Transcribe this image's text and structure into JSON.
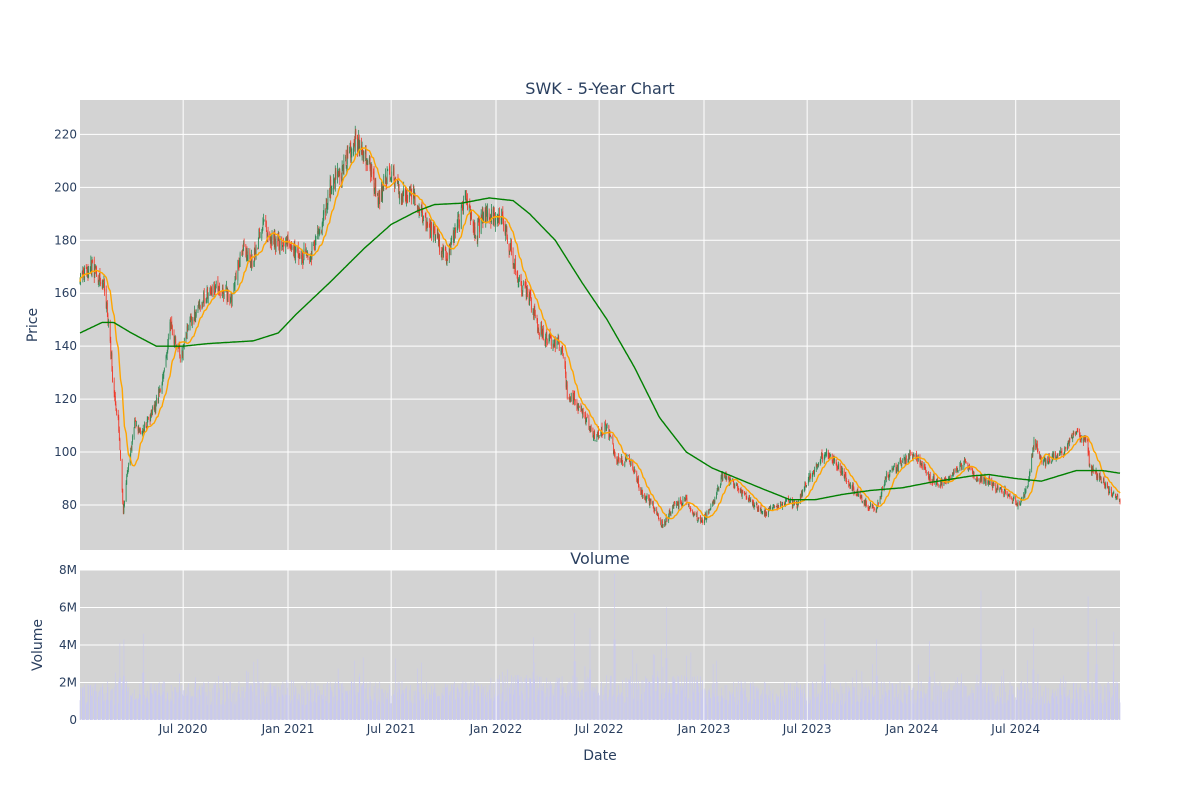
{
  "chart_data": [
    {
      "type": "candlestick",
      "title": "SWK - 5-Year Chart",
      "ylabel": "Price",
      "ylim": [
        63,
        233
      ],
      "yticks": [
        80,
        100,
        120,
        140,
        160,
        180,
        200,
        220
      ],
      "grid": true,
      "colors": {
        "background": "#d3d3d3",
        "grid": "#ffffff",
        "increasing": "#2e8b57",
        "decreasing": "#ef3b2c",
        "ma_short": "#ffa500",
        "ma_long": "#008000",
        "text": "#2a3f5f"
      },
      "price_anchors": [
        {
          "x": "2020-01-02",
          "y": 166
        },
        {
          "x": "2020-01-20",
          "y": 170
        },
        {
          "x": "2020-02-12",
          "y": 164
        },
        {
          "x": "2020-02-21",
          "y": 150
        },
        {
          "x": "2020-02-28",
          "y": 128
        },
        {
          "x": "2020-03-09",
          "y": 112
        },
        {
          "x": "2020-03-18",
          "y": 78
        },
        {
          "x": "2020-03-27",
          "y": 96
        },
        {
          "x": "2020-04-07",
          "y": 110
        },
        {
          "x": "2020-04-21",
          "y": 108
        },
        {
          "x": "2020-05-01",
          "y": 112
        },
        {
          "x": "2020-05-14",
          "y": 118
        },
        {
          "x": "2020-05-29",
          "y": 130
        },
        {
          "x": "2020-06-08",
          "y": 148
        },
        {
          "x": "2020-06-26",
          "y": 136
        },
        {
          "x": "2020-07-14",
          "y": 150
        },
        {
          "x": "2020-08-07",
          "y": 158
        },
        {
          "x": "2020-09-02",
          "y": 163
        },
        {
          "x": "2020-09-23",
          "y": 158
        },
        {
          "x": "2020-10-13",
          "y": 178
        },
        {
          "x": "2020-10-30",
          "y": 172
        },
        {
          "x": "2020-11-18",
          "y": 186
        },
        {
          "x": "2020-12-04",
          "y": 180
        },
        {
          "x": "2020-12-23",
          "y": 180
        },
        {
          "x": "2021-01-19",
          "y": 174
        },
        {
          "x": "2021-02-09",
          "y": 174
        },
        {
          "x": "2021-03-01",
          "y": 185
        },
        {
          "x": "2021-03-15",
          "y": 200
        },
        {
          "x": "2021-04-05",
          "y": 206
        },
        {
          "x": "2021-04-28",
          "y": 218
        },
        {
          "x": "2021-05-11",
          "y": 214
        },
        {
          "x": "2021-05-24",
          "y": 208
        },
        {
          "x": "2021-06-08",
          "y": 196
        },
        {
          "x": "2021-06-28",
          "y": 206
        },
        {
          "x": "2021-07-19",
          "y": 198
        },
        {
          "x": "2021-08-13",
          "y": 196
        },
        {
          "x": "2021-08-27",
          "y": 188
        },
        {
          "x": "2021-09-16",
          "y": 182
        },
        {
          "x": "2021-10-06",
          "y": 174
        },
        {
          "x": "2021-10-26",
          "y": 186
        },
        {
          "x": "2021-11-10",
          "y": 196
        },
        {
          "x": "2021-11-26",
          "y": 182
        },
        {
          "x": "2021-12-10",
          "y": 190
        },
        {
          "x": "2021-12-28",
          "y": 188
        },
        {
          "x": "2022-01-11",
          "y": 190
        },
        {
          "x": "2022-01-25",
          "y": 178
        },
        {
          "x": "2022-02-09",
          "y": 166
        },
        {
          "x": "2022-03-01",
          "y": 158
        },
        {
          "x": "2022-03-18",
          "y": 146
        },
        {
          "x": "2022-04-06",
          "y": 142
        },
        {
          "x": "2022-04-27",
          "y": 140
        },
        {
          "x": "2022-05-06",
          "y": 122
        },
        {
          "x": "2022-05-24",
          "y": 118
        },
        {
          "x": "2022-06-10",
          "y": 112
        },
        {
          "x": "2022-06-24",
          "y": 105
        },
        {
          "x": "2022-07-15",
          "y": 110
        },
        {
          "x": "2022-08-01",
          "y": 96
        },
        {
          "x": "2022-08-24",
          "y": 98
        },
        {
          "x": "2022-09-13",
          "y": 85
        },
        {
          "x": "2022-10-03",
          "y": 80
        },
        {
          "x": "2022-10-21",
          "y": 72
        },
        {
          "x": "2022-11-09",
          "y": 80
        },
        {
          "x": "2022-11-30",
          "y": 82
        },
        {
          "x": "2022-12-16",
          "y": 76
        },
        {
          "x": "2022-12-30",
          "y": 74
        },
        {
          "x": "2023-01-20",
          "y": 82
        },
        {
          "x": "2023-02-03",
          "y": 92
        },
        {
          "x": "2023-02-22",
          "y": 88
        },
        {
          "x": "2023-03-10",
          "y": 84
        },
        {
          "x": "2023-03-30",
          "y": 80
        },
        {
          "x": "2023-04-14",
          "y": 77
        },
        {
          "x": "2023-05-05",
          "y": 79
        },
        {
          "x": "2023-05-25",
          "y": 81
        },
        {
          "x": "2023-06-13",
          "y": 80
        },
        {
          "x": "2023-06-30",
          "y": 88
        },
        {
          "x": "2023-07-21",
          "y": 97
        },
        {
          "x": "2023-08-04",
          "y": 100
        },
        {
          "x": "2023-08-24",
          "y": 95
        },
        {
          "x": "2023-09-12",
          "y": 88
        },
        {
          "x": "2023-09-29",
          "y": 84
        },
        {
          "x": "2023-10-16",
          "y": 80
        },
        {
          "x": "2023-10-30",
          "y": 78
        },
        {
          "x": "2023-11-15",
          "y": 90
        },
        {
          "x": "2023-12-05",
          "y": 94
        },
        {
          "x": "2023-12-28",
          "y": 99
        },
        {
          "x": "2024-01-16",
          "y": 96
        },
        {
          "x": "2024-02-02",
          "y": 90
        },
        {
          "x": "2024-02-23",
          "y": 88
        },
        {
          "x": "2024-03-14",
          "y": 92
        },
        {
          "x": "2024-04-01",
          "y": 96
        },
        {
          "x": "2024-04-22",
          "y": 90
        },
        {
          "x": "2024-05-10",
          "y": 90
        },
        {
          "x": "2024-05-31",
          "y": 86
        },
        {
          "x": "2024-06-20",
          "y": 84
        },
        {
          "x": "2024-07-08",
          "y": 80
        },
        {
          "x": "2024-07-22",
          "y": 88
        },
        {
          "x": "2024-08-02",
          "y": 104
        },
        {
          "x": "2024-08-16",
          "y": 96
        },
        {
          "x": "2024-09-05",
          "y": 98
        },
        {
          "x": "2024-09-25",
          "y": 100
        },
        {
          "x": "2024-10-15",
          "y": 108
        },
        {
          "x": "2024-11-04",
          "y": 103
        },
        {
          "x": "2024-11-08",
          "y": 94
        },
        {
          "x": "2024-11-27",
          "y": 90
        },
        {
          "x": "2024-12-10",
          "y": 86
        },
        {
          "x": "2024-12-31",
          "y": 81
        }
      ],
      "ma_long_anchors": [
        {
          "x": "2020-01-02",
          "y": 145
        },
        {
          "x": "2020-02-10",
          "y": 149
        },
        {
          "x": "2020-03-01",
          "y": 149
        },
        {
          "x": "2020-04-01",
          "y": 145
        },
        {
          "x": "2020-05-15",
          "y": 140
        },
        {
          "x": "2020-07-01",
          "y": 140
        },
        {
          "x": "2020-08-15",
          "y": 141
        },
        {
          "x": "2020-11-01",
          "y": 142
        },
        {
          "x": "2020-12-15",
          "y": 145
        },
        {
          "x": "2021-01-15",
          "y": 152
        },
        {
          "x": "2021-03-15",
          "y": 164
        },
        {
          "x": "2021-05-15",
          "y": 177
        },
        {
          "x": "2021-07-01",
          "y": 186
        },
        {
          "x": "2021-08-15",
          "y": 191
        },
        {
          "x": "2021-09-15",
          "y": 193.5
        },
        {
          "x": "2021-11-01",
          "y": 194
        },
        {
          "x": "2021-12-20",
          "y": 196
        },
        {
          "x": "2022-01-31",
          "y": 195
        },
        {
          "x": "2022-03-01",
          "y": 190
        },
        {
          "x": "2022-04-15",
          "y": 180
        },
        {
          "x": "2022-06-01",
          "y": 164
        },
        {
          "x": "2022-07-15",
          "y": 150
        },
        {
          "x": "2022-09-01",
          "y": 132
        },
        {
          "x": "2022-10-15",
          "y": 113
        },
        {
          "x": "2022-12-01",
          "y": 100
        },
        {
          "x": "2023-01-15",
          "y": 94
        },
        {
          "x": "2023-03-01",
          "y": 90
        },
        {
          "x": "2023-04-15",
          "y": 86
        },
        {
          "x": "2023-06-01",
          "y": 82
        },
        {
          "x": "2023-07-15",
          "y": 82
        },
        {
          "x": "2023-09-01",
          "y": 84
        },
        {
          "x": "2023-10-20",
          "y": 85.5
        },
        {
          "x": "2023-12-15",
          "y": 86.5
        },
        {
          "x": "2024-02-01",
          "y": 88.5
        },
        {
          "x": "2024-04-15",
          "y": 91
        },
        {
          "x": "2024-05-15",
          "y": 91.5
        },
        {
          "x": "2024-07-01",
          "y": 90
        },
        {
          "x": "2024-08-15",
          "y": 89
        },
        {
          "x": "2024-10-15",
          "y": 93
        },
        {
          "x": "2024-12-01",
          "y": 93
        },
        {
          "x": "2024-12-31",
          "y": 92
        }
      ]
    },
    {
      "type": "bar",
      "title": "Volume",
      "xlabel": "Date",
      "ylabel": "Volume",
      "ylim": [
        0,
        8000000
      ],
      "yticks": [
        {
          "v": 0,
          "label": "0"
        },
        {
          "v": 2000000,
          "label": "2M"
        },
        {
          "v": 4000000,
          "label": "4M"
        },
        {
          "v": 6000000,
          "label": "6M"
        },
        {
          "v": 8000000,
          "label": "8M"
        }
      ],
      "xlim": [
        "2020-01-02",
        "2024-12-31"
      ],
      "xticks": [
        {
          "x": "2020-07-01",
          "label": "Jul 2020"
        },
        {
          "x": "2021-01-01",
          "label": "Jan 2021"
        },
        {
          "x": "2021-07-01",
          "label": "Jul 2021"
        },
        {
          "x": "2022-01-01",
          "label": "Jan 2022"
        },
        {
          "x": "2022-07-01",
          "label": "Jul 2022"
        },
        {
          "x": "2023-01-01",
          "label": "Jan 2023"
        },
        {
          "x": "2023-07-01",
          "label": "Jul 2023"
        },
        {
          "x": "2024-01-01",
          "label": "Jan 2024"
        },
        {
          "x": "2024-07-01",
          "label": "Jul 2024"
        }
      ],
      "bar_color": "#c8c8f0",
      "volume_spikes": [
        {
          "x": "2020-03-12",
          "v": 4100000
        },
        {
          "x": "2020-03-19",
          "v": 4300000
        },
        {
          "x": "2020-04-22",
          "v": 4600000
        },
        {
          "x": "2020-11-02",
          "v": 3100000
        },
        {
          "x": "2022-03-08",
          "v": 4400000
        },
        {
          "x": "2022-05-19",
          "v": 5700000
        },
        {
          "x": "2022-06-15",
          "v": 4900000
        },
        {
          "x": "2022-07-28",
          "v": 7800000
        },
        {
          "x": "2022-10-27",
          "v": 6000000
        },
        {
          "x": "2023-08-01",
          "v": 5400000
        },
        {
          "x": "2023-10-31",
          "v": 4300000
        },
        {
          "x": "2024-02-01",
          "v": 4200000
        },
        {
          "x": "2024-05-01",
          "v": 6900000
        },
        {
          "x": "2024-08-01",
          "v": 4900000
        },
        {
          "x": "2024-11-05",
          "v": 6600000
        },
        {
          "x": "2024-11-20",
          "v": 5400000
        },
        {
          "x": "2024-12-20",
          "v": 4700000
        }
      ]
    }
  ]
}
